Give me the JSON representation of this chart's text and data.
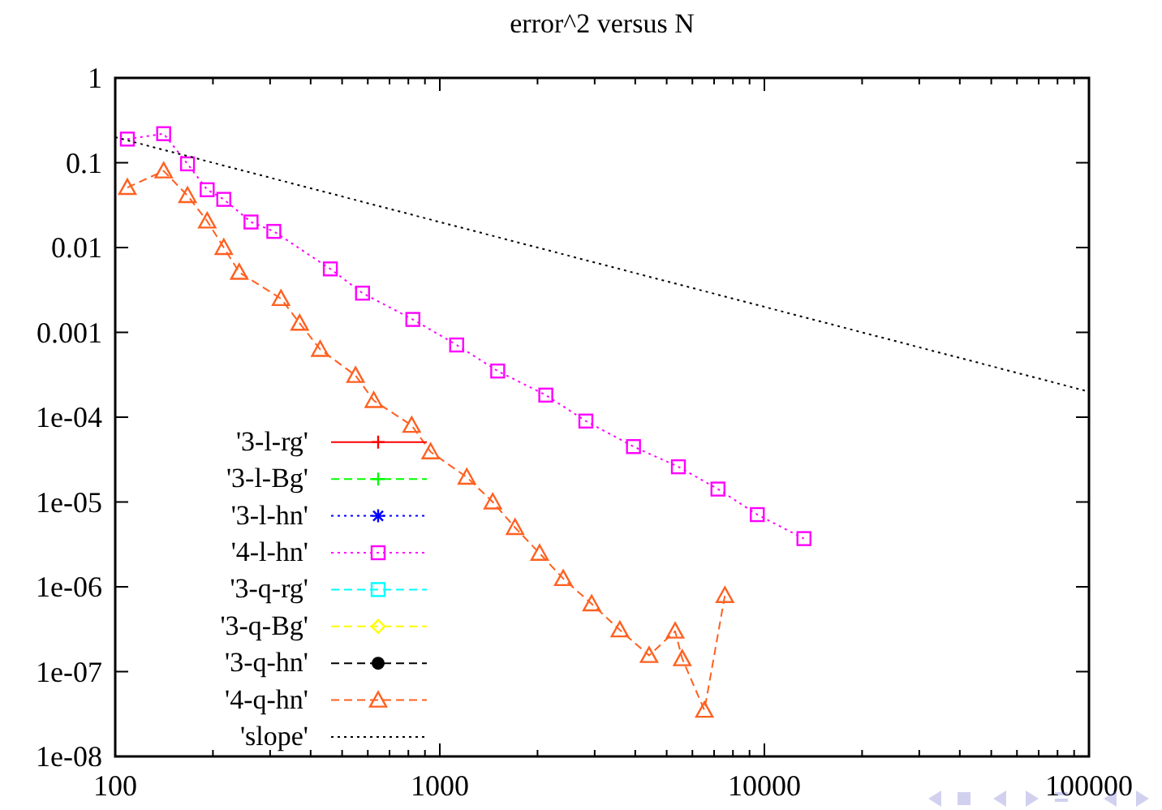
{
  "chart_data": {
    "type": "line",
    "title": "error^2 versus N",
    "log": "xy",
    "grid": false,
    "legend": "bottom left",
    "xlim": [
      100,
      100000
    ],
    "ylim": [
      1e-08,
      1
    ],
    "xticks": [
      100,
      {
        "value": 200,
        "label": null
      },
      {
        "value": 300,
        "label": null
      },
      {
        "value": 400,
        "label": null
      },
      {
        "value": 500,
        "label": null
      },
      {
        "value": 600,
        "label": null
      },
      {
        "value": 700,
        "label": null
      },
      {
        "value": 800,
        "label": null
      },
      {
        "value": 900,
        "label": null
      },
      1000,
      {
        "value": 2000,
        "label": null
      },
      {
        "value": 3000,
        "label": null
      },
      {
        "value": 4000,
        "label": null
      },
      {
        "value": 5000,
        "label": null
      },
      {
        "value": 6000,
        "label": null
      },
      {
        "value": 7000,
        "label": null
      },
      {
        "value": 8000,
        "label": null
      },
      {
        "value": 9000,
        "label": null
      },
      10000,
      {
        "value": 20000,
        "label": null
      },
      {
        "value": 30000,
        "label": null
      },
      {
        "value": 40000,
        "label": null
      },
      {
        "value": 50000,
        "label": null
      },
      {
        "value": 60000,
        "label": null
      },
      {
        "value": 70000,
        "label": null
      },
      {
        "value": 80000,
        "label": null
      },
      {
        "value": 90000,
        "label": null
      },
      100000
    ],
    "yticks": [
      1,
      0.1,
      0.01,
      0.001,
      {
        "value": 0.0001,
        "label": "1e-04"
      },
      {
        "value": 1e-05,
        "label": "1e-05"
      },
      {
        "value": 1e-06,
        "label": "1e-06"
      },
      {
        "value": 1e-07,
        "label": "1e-07"
      },
      {
        "value": 1e-08,
        "label": "1e-08"
      }
    ],
    "series": [
      {
        "name": "'3-l-rg'",
        "color": "#ff0000",
        "marker": "cross",
        "line_style": "solid"
      },
      {
        "name": "'3-l-Bg'",
        "color": "#00ff00",
        "marker": "cross",
        "line_style": "dashed"
      },
      {
        "name": "'3-l-hn'",
        "color": "#0000ff",
        "marker": "star",
        "line_style": "dotted"
      },
      {
        "name": "'4-l-hn'",
        "color": "#ff00ff",
        "marker": "square",
        "line_style": "dotted",
        "x": [
          109,
          141,
          167,
          192,
          216,
          262,
          308,
          460,
          578,
          826,
          1127,
          1508,
          2121,
          2818,
          3951,
          5433,
          7194,
          9510,
          13240
        ],
        "values": [
          0.19,
          0.22,
          0.097,
          0.048,
          0.037,
          0.02,
          0.0155,
          0.0056,
          0.0029,
          0.00142,
          0.00071,
          0.00035,
          0.000182,
          9e-05,
          4.5e-05,
          2.6e-05,
          1.42e-05,
          7.1e-06,
          3.7e-06
        ]
      },
      {
        "name": "'3-q-rg'",
        "color": "#00ffff",
        "marker": "square",
        "line_style": "dashed"
      },
      {
        "name": "'3-q-Bg'",
        "color": "#ffff00",
        "marker": "diamond",
        "line_style": "dashed"
      },
      {
        "name": "'3-q-hn'",
        "color": "#000000",
        "marker": "circle",
        "line_style": "dashed"
      },
      {
        "name": "'4-q-hn'",
        "color": "#ff6020",
        "marker": "triangle",
        "line_style": "dashed",
        "x": [
          109,
          141,
          167,
          192,
          216,
          241,
          324,
          370,
          428,
          550,
          626,
          819,
          937,
          1211,
          1456,
          1705,
          2030,
          2400,
          2937,
          3586,
          4413,
          5309,
          5584,
          6535,
          7555
        ],
        "values": [
          0.051,
          0.08,
          0.041,
          0.0205,
          0.01,
          0.0051,
          0.0025,
          0.00128,
          0.00063,
          0.00031,
          0.000157,
          8e-05,
          3.9e-05,
          1.96e-05,
          1e-05,
          5e-06,
          2.48e-06,
          1.25e-06,
          6.3e-07,
          3.1e-07,
          1.55e-07,
          3e-07,
          1.42e-07,
          3.5e-08,
          7.9e-07
        ]
      },
      {
        "name": "'slope'",
        "color": "#000000",
        "marker": "none",
        "line_style": "dotted",
        "x": [
          100,
          100000
        ],
        "values": [
          0.2,
          0.0002
        ]
      }
    ]
  }
}
